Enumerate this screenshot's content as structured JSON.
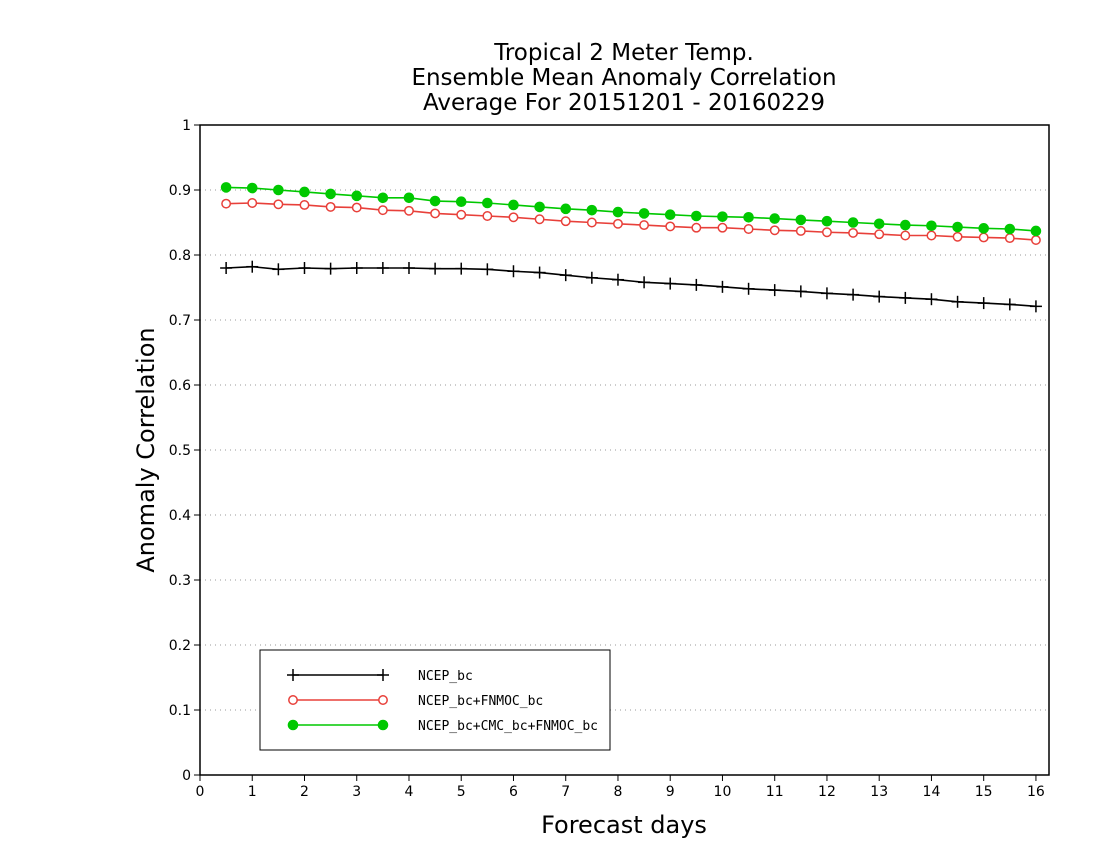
{
  "chart_data": {
    "type": "line",
    "title": [
      "Tropical 2 Meter Temp.",
      "Ensemble Mean Anomaly Correlation",
      "Average For 20151201 - 20160229"
    ],
    "xlabel": "Forecast days",
    "ylabel": "Anomaly Correlation",
    "xlim": [
      0,
      16.25
    ],
    "ylim": [
      0,
      1
    ],
    "xticks": [
      "0",
      "1",
      "2",
      "3",
      "4",
      "5",
      "6",
      "7",
      "8",
      "9",
      "10",
      "11",
      "12",
      "13",
      "14",
      "15",
      "16"
    ],
    "yticks": [
      "0",
      "0.1",
      "0.2",
      "0.3",
      "0.4",
      "0.5",
      "0.6",
      "0.7",
      "0.8",
      "0.9",
      "1"
    ],
    "grid": "dotted horizontal",
    "legend_position": "bottom-left",
    "x": [
      0.5,
      1,
      1.5,
      2,
      2.5,
      3,
      3.5,
      4,
      4.5,
      5,
      5.5,
      6,
      6.5,
      7,
      7.5,
      8,
      8.5,
      9,
      9.5,
      10,
      10.5,
      11,
      11.5,
      12,
      12.5,
      13,
      13.5,
      14,
      14.5,
      15,
      15.5,
      16
    ],
    "series": [
      {
        "name": "NCEP_bc",
        "color": "#000000",
        "marker": "plus",
        "values": [
          0.78,
          0.782,
          0.778,
          0.78,
          0.779,
          0.78,
          0.78,
          0.78,
          0.779,
          0.779,
          0.778,
          0.775,
          0.773,
          0.769,
          0.765,
          0.762,
          0.758,
          0.756,
          0.754,
          0.751,
          0.748,
          0.746,
          0.744,
          0.741,
          0.739,
          0.736,
          0.734,
          0.732,
          0.728,
          0.726,
          0.724,
          0.721
        ]
      },
      {
        "name": "NCEP_bc+FNMOC_bc",
        "color": "#e8403a",
        "marker": "open-circle",
        "values": [
          0.879,
          0.88,
          0.878,
          0.877,
          0.874,
          0.873,
          0.869,
          0.868,
          0.864,
          0.862,
          0.86,
          0.858,
          0.855,
          0.852,
          0.85,
          0.848,
          0.846,
          0.844,
          0.842,
          0.842,
          0.84,
          0.838,
          0.837,
          0.835,
          0.834,
          0.832,
          0.83,
          0.83,
          0.828,
          0.827,
          0.826,
          0.823
        ]
      },
      {
        "name": "NCEP_bc+CMC_bc+FNMOC_bc",
        "color": "#00c800",
        "marker": "filled-circle",
        "values": [
          0.904,
          0.903,
          0.9,
          0.897,
          0.894,
          0.891,
          0.888,
          0.888,
          0.883,
          0.882,
          0.88,
          0.877,
          0.874,
          0.871,
          0.869,
          0.866,
          0.864,
          0.862,
          0.86,
          0.859,
          0.858,
          0.856,
          0.854,
          0.852,
          0.85,
          0.848,
          0.846,
          0.845,
          0.843,
          0.841,
          0.84,
          0.837
        ]
      }
    ]
  }
}
